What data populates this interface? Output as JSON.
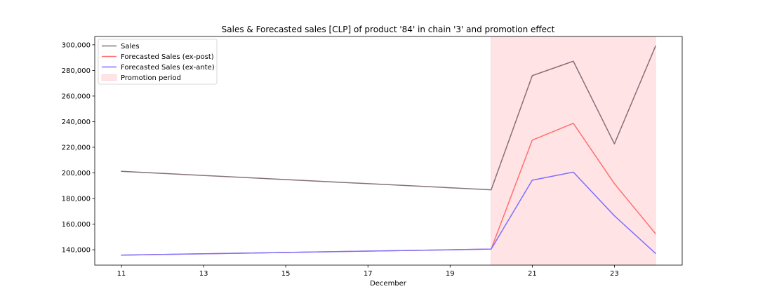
{
  "chart_data": {
    "type": "line",
    "title": "Sales & Forecasted sales [CLP] of product '84' in chain '3' and promotion effect",
    "xlabel": "December",
    "ylabel": "",
    "x": [
      11,
      20,
      21,
      22,
      23,
      24
    ],
    "x_ticks": [
      11,
      13,
      15,
      17,
      19,
      21,
      23
    ],
    "x_tick_labels": [
      "11",
      "13",
      "15",
      "17",
      "19",
      "21",
      "23"
    ],
    "xlim": [
      10.35,
      24.65
    ],
    "ylim": [
      128000,
      306500
    ],
    "y_ticks": [
      140000,
      160000,
      180000,
      200000,
      220000,
      240000,
      260000,
      280000,
      300000
    ],
    "y_tick_labels": [
      "140,000",
      "160,000",
      "180,000",
      "200,000",
      "220,000",
      "240,000",
      "260,000",
      "280,000",
      "300,000"
    ],
    "grid": false,
    "legend_position": "upper left",
    "promotion_period": {
      "name": "Promotion period",
      "x_start": 20,
      "x_end": 24,
      "color": "#ffe3e5"
    },
    "series": [
      {
        "name": "Sales",
        "color": "#85717a",
        "values": [
          201200,
          186800,
          275900,
          287200,
          222700,
          298900
        ]
      },
      {
        "name": "Forecasted Sales (ex-post)",
        "color": "#ff7070",
        "values": [
          135800,
          140500,
          225600,
          238700,
          191600,
          152600
        ]
      },
      {
        "name": "Forecasted Sales (ex-ante)",
        "color": "#7b70ff",
        "values": [
          135800,
          140500,
          194300,
          200600,
          166500,
          137200
        ]
      }
    ]
  }
}
